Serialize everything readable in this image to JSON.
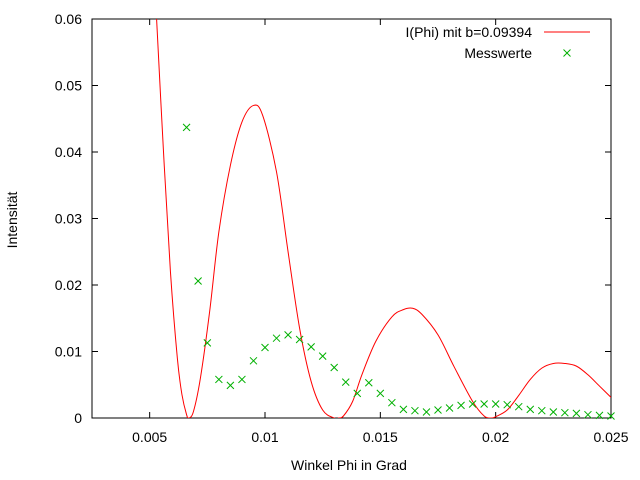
{
  "chart_data": {
    "type": "line",
    "title": "",
    "xlabel": "Winkel Phi in Grad",
    "ylabel": "Intensität",
    "xlim": [
      0.0025,
      0.025
    ],
    "ylim": [
      0,
      0.06
    ],
    "x_ticks": [
      {
        "value": 0.005,
        "label": "0.005"
      },
      {
        "value": 0.01,
        "label": "0.01"
      },
      {
        "value": 0.015,
        "label": "0.015"
      },
      {
        "value": 0.02,
        "label": "0.02"
      },
      {
        "value": 0.025,
        "label": "0.025"
      }
    ],
    "y_ticks": [
      {
        "value": 0,
        "label": "0"
      },
      {
        "value": 0.01,
        "label": "0.01"
      },
      {
        "value": 0.02,
        "label": "0.02"
      },
      {
        "value": 0.03,
        "label": "0.03"
      },
      {
        "value": 0.04,
        "label": "0.04"
      },
      {
        "value": 0.05,
        "label": "0.05"
      },
      {
        "value": 0.06,
        "label": "0.06"
      }
    ],
    "grid": false,
    "legend_position": "top-right",
    "series": [
      {
        "name": "I(Phi) mit b=0.09394",
        "kind": "line",
        "color": "#ff0000",
        "x": [
          0.0053,
          0.0056,
          0.0059,
          0.0062,
          0.0064,
          0.0066,
          0.0067,
          0.0069,
          0.0072,
          0.0076,
          0.008,
          0.0085,
          0.009,
          0.0095,
          0.0099,
          0.0105,
          0.011,
          0.0115,
          0.012,
          0.0125,
          0.013,
          0.0132,
          0.0134,
          0.0138,
          0.0142,
          0.0148,
          0.0155,
          0.016,
          0.0164,
          0.0168,
          0.0175,
          0.0182,
          0.019,
          0.0195,
          0.0198,
          0.02,
          0.0205,
          0.021,
          0.0215,
          0.022,
          0.0225,
          0.023,
          0.0235,
          0.024,
          0.0245,
          0.025
        ],
        "y": [
          0.06,
          0.04,
          0.022,
          0.009,
          0.0035,
          0.0005,
          0.0,
          0.001,
          0.006,
          0.016,
          0.028,
          0.038,
          0.0445,
          0.047,
          0.0455,
          0.037,
          0.025,
          0.0135,
          0.0055,
          0.0012,
          0.0,
          0.0,
          0.0003,
          0.0025,
          0.0065,
          0.0115,
          0.0152,
          0.0163,
          0.0165,
          0.0156,
          0.0125,
          0.0077,
          0.0025,
          0.0003,
          0.0,
          0.0002,
          0.0012,
          0.0034,
          0.0058,
          0.0075,
          0.0082,
          0.0082,
          0.0078,
          0.0065,
          0.0048,
          0.0031
        ]
      },
      {
        "name": "Messwerte",
        "kind": "scatter",
        "color": "#00b000",
        "x": [
          0.0066,
          0.0071,
          0.0075,
          0.008,
          0.0085,
          0.009,
          0.0095,
          0.01,
          0.0105,
          0.011,
          0.0115,
          0.012,
          0.0125,
          0.013,
          0.0135,
          0.014,
          0.0145,
          0.015,
          0.0155,
          0.016,
          0.0165,
          0.017,
          0.0175,
          0.018,
          0.0185,
          0.019,
          0.0195,
          0.02,
          0.0205,
          0.021,
          0.0215,
          0.022,
          0.0225,
          0.023,
          0.0235,
          0.024,
          0.0245,
          0.025
        ],
        "y": [
          0.0437,
          0.0206,
          0.0113,
          0.0058,
          0.0049,
          0.0058,
          0.0086,
          0.0106,
          0.012,
          0.0125,
          0.0118,
          0.0107,
          0.0093,
          0.0076,
          0.0054,
          0.0037,
          0.0053,
          0.0037,
          0.0023,
          0.0013,
          0.0011,
          0.0009,
          0.0012,
          0.0015,
          0.0019,
          0.0021,
          0.0021,
          0.0021,
          0.002,
          0.0017,
          0.0013,
          0.0011,
          0.0009,
          0.0008,
          0.0007,
          0.0005,
          0.0004,
          0.0003
        ]
      }
    ]
  }
}
